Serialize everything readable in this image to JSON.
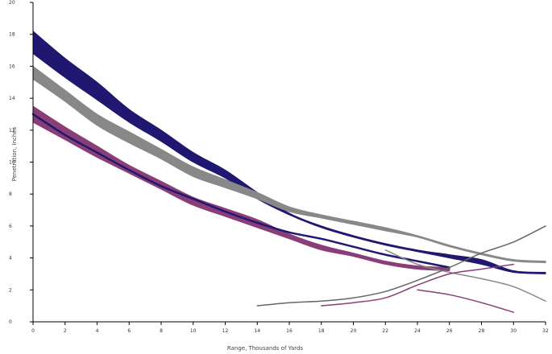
{
  "chart_data": {
    "type": "line",
    "title": "",
    "xlabel": "Range, Thousands of Yards",
    "ylabel": "Penetration, Inches",
    "xlim": [
      0,
      32
    ],
    "ylim": [
      0,
      20
    ],
    "x_ticks": [
      "0",
      "2",
      "4",
      "6",
      "8",
      "10",
      "12",
      "14",
      "16",
      "18",
      "20",
      "22",
      "24",
      "26",
      "28",
      "30",
      "32"
    ],
    "y_ticks": [
      "0",
      "2",
      "4",
      "6",
      "8",
      "10",
      "12",
      "14",
      "16",
      "18",
      "20"
    ],
    "grid": false,
    "legend": "none",
    "bands": [
      {
        "color": "#201870",
        "x": [
          0,
          2,
          4,
          6,
          8,
          10,
          12,
          14,
          16,
          18,
          20,
          22,
          24,
          26,
          28,
          30,
          32
        ],
        "upper": [
          18.2,
          16.5,
          15.0,
          13.3,
          12.0,
          10.6,
          9.5,
          8.1,
          6.8,
          6.0,
          5.4,
          4.9,
          4.5,
          4.2,
          3.9,
          3.2,
          3.1
        ],
        "lower": [
          16.8,
          15.3,
          13.9,
          12.5,
          11.3,
          10.0,
          9.0,
          7.7,
          6.7,
          5.9,
          5.3,
          4.8,
          4.4,
          4.0,
          3.6,
          3.1,
          3.0
        ]
      },
      {
        "color": "#888888",
        "x": [
          0,
          2,
          4,
          6,
          8,
          10,
          12,
          14,
          16,
          18,
          20,
          22,
          24,
          26,
          28,
          30,
          32
        ],
        "upper": [
          16.0,
          14.5,
          13.0,
          11.9,
          10.8,
          9.7,
          8.9,
          8.1,
          7.2,
          6.7,
          6.3,
          5.9,
          5.4,
          4.8,
          4.3,
          3.9,
          3.8
        ],
        "lower": [
          15.2,
          13.8,
          12.3,
          11.2,
          10.2,
          9.1,
          8.4,
          7.7,
          6.9,
          6.5,
          6.1,
          5.7,
          5.3,
          4.7,
          4.2,
          3.8,
          3.7
        ]
      },
      {
        "color": "#8a3e78",
        "x": [
          0,
          2,
          4,
          6,
          8,
          10,
          12,
          14,
          16,
          18,
          20,
          22,
          24,
          26
        ],
        "upper": [
          13.5,
          12.2,
          11.0,
          9.8,
          8.8,
          7.8,
          7.1,
          6.4,
          5.5,
          4.8,
          4.3,
          3.8,
          3.5,
          3.4
        ],
        "lower": [
          12.5,
          11.4,
          10.3,
          9.3,
          8.3,
          7.3,
          6.6,
          5.9,
          5.2,
          4.5,
          4.1,
          3.6,
          3.3,
          3.2
        ]
      }
    ],
    "series": [
      {
        "color": "#201870",
        "width": 2.5,
        "x": [
          0,
          2,
          4,
          6,
          8,
          10,
          12,
          14,
          16,
          18,
          20,
          22,
          24,
          26
        ],
        "y": [
          13.0,
          11.7,
          10.6,
          9.5,
          8.5,
          7.7,
          6.9,
          6.2,
          5.6,
          5.2,
          4.7,
          4.2,
          3.8,
          3.4
        ]
      },
      {
        "color": "#888888",
        "width": 1.5,
        "x": [
          22,
          24,
          26,
          28,
          30,
          32
        ],
        "y": [
          4.5,
          3.6,
          3.1,
          2.7,
          2.2,
          1.3
        ]
      },
      {
        "color": "#8a3e78",
        "width": 1.5,
        "x": [
          24,
          26,
          28,
          30
        ],
        "y": [
          2.0,
          1.7,
          1.2,
          0.6
        ]
      },
      {
        "color": "#666666",
        "width": 1.5,
        "x": [
          14,
          16,
          18,
          20,
          22,
          24,
          26,
          28,
          30,
          32
        ],
        "y": [
          1.0,
          1.2,
          1.3,
          1.5,
          1.9,
          2.6,
          3.4,
          4.3,
          5.0,
          6.0
        ]
      },
      {
        "color": "#8a3e78",
        "width": 1.5,
        "x": [
          18,
          20,
          22,
          24,
          26,
          28,
          30
        ],
        "y": [
          1.0,
          1.2,
          1.5,
          2.3,
          3.0,
          3.3,
          3.6
        ]
      }
    ]
  }
}
